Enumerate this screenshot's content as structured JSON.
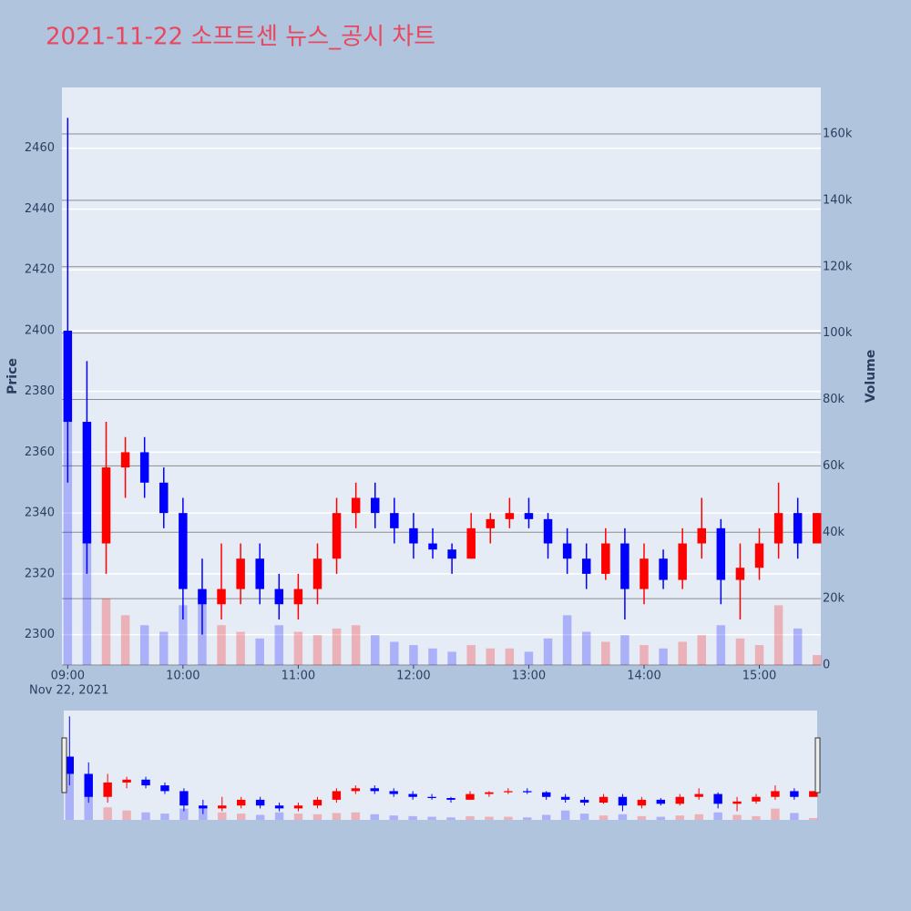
{
  "chart_data": {
    "type": "candlestick",
    "title": "2021-11-22 소프트센 뉴스_공시 차트",
    "x": [
      "09:00",
      "09:10",
      "09:20",
      "09:30",
      "09:40",
      "09:50",
      "10:00",
      "10:10",
      "10:20",
      "10:30",
      "10:40",
      "10:50",
      "11:00",
      "11:10",
      "11:20",
      "11:30",
      "11:40",
      "11:50",
      "12:00",
      "12:10",
      "12:20",
      "12:30",
      "12:40",
      "12:50",
      "13:00",
      "13:10",
      "13:20",
      "13:30",
      "13:40",
      "13:50",
      "14:00",
      "14:10",
      "14:20",
      "14:30",
      "14:40",
      "14:50",
      "15:00",
      "15:10",
      "15:20",
      "15:30"
    ],
    "open": [
      2400,
      2370,
      2330,
      2355,
      2360,
      2350,
      2340,
      2315,
      2310,
      2315,
      2325,
      2315,
      2310,
      2315,
      2325,
      2340,
      2345,
      2340,
      2335,
      2330,
      2328,
      2325,
      2335,
      2338,
      2340,
      2338,
      2330,
      2325,
      2320,
      2330,
      2315,
      2325,
      2318,
      2330,
      2335,
      2318,
      2322,
      2330,
      2340,
      2330
    ],
    "high": [
      2470,
      2390,
      2370,
      2365,
      2365,
      2355,
      2345,
      2325,
      2330,
      2330,
      2330,
      2320,
      2320,
      2330,
      2345,
      2350,
      2350,
      2345,
      2340,
      2335,
      2330,
      2340,
      2340,
      2345,
      2345,
      2340,
      2335,
      2330,
      2335,
      2335,
      2330,
      2328,
      2335,
      2345,
      2338,
      2330,
      2335,
      2350,
      2345,
      2340
    ],
    "low": [
      2350,
      2320,
      2320,
      2345,
      2345,
      2335,
      2305,
      2300,
      2305,
      2310,
      2310,
      2305,
      2305,
      2310,
      2320,
      2335,
      2335,
      2330,
      2325,
      2325,
      2320,
      2325,
      2330,
      2335,
      2335,
      2325,
      2320,
      2315,
      2318,
      2305,
      2310,
      2315,
      2315,
      2325,
      2310,
      2305,
      2318,
      2325,
      2325,
      2330
    ],
    "close": [
      2370,
      2330,
      2355,
      2360,
      2350,
      2340,
      2315,
      2310,
      2315,
      2325,
      2315,
      2310,
      2315,
      2325,
      2340,
      2345,
      2340,
      2335,
      2330,
      2328,
      2325,
      2335,
      2338,
      2340,
      2338,
      2330,
      2325,
      2320,
      2330,
      2315,
      2325,
      2318,
      2330,
      2335,
      2318,
      2322,
      2330,
      2340,
      2330,
      2340
    ],
    "volume": [
      100000,
      40000,
      20000,
      15000,
      12000,
      10000,
      18000,
      22000,
      12000,
      10000,
      8000,
      12000,
      10000,
      9000,
      11000,
      12000,
      9000,
      7000,
      6000,
      5000,
      4000,
      6000,
      5000,
      5000,
      4000,
      8000,
      15000,
      10000,
      7000,
      9000,
      6000,
      5000,
      7000,
      9000,
      12000,
      8000,
      6000,
      18000,
      11000,
      3000
    ],
    "increasing_color": "#ff0000",
    "decreasing_color": "#0000ff",
    "xlim": [
      "08:57",
      "15:32"
    ],
    "xticks": [
      "09:00",
      "10:00",
      "11:00",
      "12:00",
      "13:00",
      "14:00",
      "15:00"
    ],
    "x_date_label": "Nov 22, 2021",
    "ylim": [
      2290,
      2480
    ],
    "yticks": [
      2300,
      2320,
      2340,
      2360,
      2380,
      2400,
      2420,
      2440,
      2460
    ],
    "y2lim": [
      0,
      174000
    ],
    "y2ticks": [
      0,
      {
        "value": 20000,
        "label": "20k"
      },
      {
        "value": 40000,
        "label": "40k"
      },
      {
        "value": 60000,
        "label": "60k"
      },
      {
        "value": 80000,
        "label": "80k"
      },
      {
        "value": 100000,
        "label": "100k"
      },
      {
        "value": 120000,
        "label": "120k"
      },
      {
        "value": 140000,
        "label": "140k"
      },
      {
        "value": 160000,
        "label": "160k"
      }
    ],
    "ylabel": "Price",
    "y2label": "Volume",
    "grid": true,
    "rangeslider": true
  }
}
